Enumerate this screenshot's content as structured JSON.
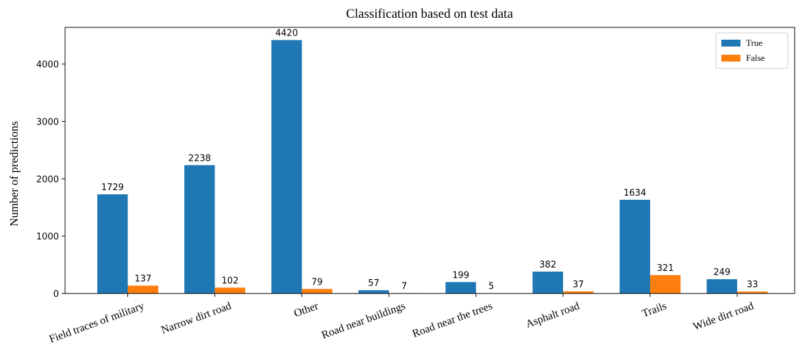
{
  "chart_data": {
    "type": "bar",
    "title": "Classification based on test data",
    "y_label": "Number of predictions",
    "categories": [
      "Field traces of military",
      "Narrow dirt road",
      "Other",
      "Road near buildings",
      "Road near the trees",
      "Asphalt road",
      "Trails",
      "Wide dirt road"
    ],
    "series": [
      {
        "name": "True",
        "color": "#1f77b4",
        "values": [
          1729,
          2238,
          4420,
          57,
          199,
          382,
          1634,
          249
        ]
      },
      {
        "name": "False",
        "color": "#ff7f0e",
        "values": [
          137,
          102,
          79,
          7,
          5,
          37,
          321,
          33
        ]
      }
    ],
    "ylim": [
      0,
      4641
    ],
    "yticks": [
      0,
      1000,
      2000,
      3000,
      4000
    ],
    "legend": "upper right"
  }
}
